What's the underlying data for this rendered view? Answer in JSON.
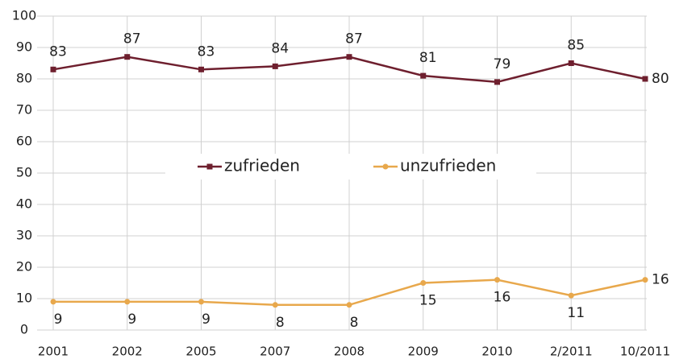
{
  "chart_data": {
    "type": "line",
    "categories": [
      "2001",
      "2002",
      "2005",
      "2007",
      "2008",
      "2009",
      "2010",
      "2/2011",
      "10/2011"
    ],
    "series": [
      {
        "name": "zufrieden",
        "color": "#6e1f2e",
        "marker": "square",
        "values": [
          83,
          87,
          83,
          84,
          87,
          81,
          79,
          85,
          80
        ]
      },
      {
        "name": "unzufrieden",
        "color": "#e8a84c",
        "marker": "circle",
        "values": [
          9,
          9,
          9,
          8,
          8,
          15,
          16,
          11,
          16
        ]
      }
    ],
    "ylim": [
      0,
      100
    ],
    "yticks": [
      0,
      10,
      20,
      30,
      40,
      50,
      60,
      70,
      80,
      90,
      100
    ],
    "grid": true,
    "legend": "center"
  }
}
